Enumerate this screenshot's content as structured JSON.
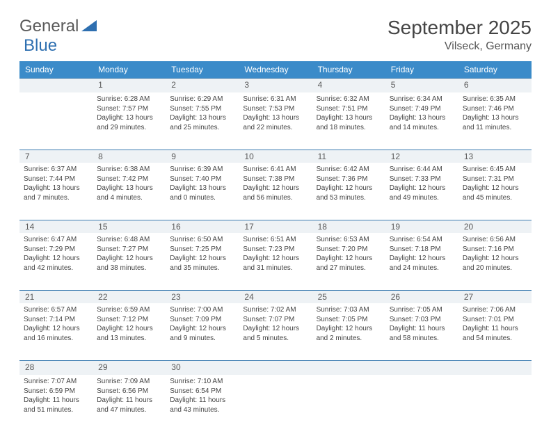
{
  "logo": {
    "part1": "General",
    "part2": "Blue"
  },
  "title": "September 2025",
  "location": "Vilseck, Germany",
  "colors": {
    "header_bg": "#3b8bc9",
    "header_text": "#ffffff",
    "daynum_bg": "#eef2f5",
    "daynum_border": "#3b7bb0",
    "text": "#444444",
    "logo_gray": "#5a5a5a",
    "logo_blue": "#2e6fb0",
    "page_bg": "#ffffff"
  },
  "day_names": [
    "Sunday",
    "Monday",
    "Tuesday",
    "Wednesday",
    "Thursday",
    "Friday",
    "Saturday"
  ],
  "weeks": [
    [
      {
        "day": "",
        "sunrise": "",
        "sunset": "",
        "daylight1": "",
        "daylight2": ""
      },
      {
        "day": "1",
        "sunrise": "Sunrise: 6:28 AM",
        "sunset": "Sunset: 7:57 PM",
        "daylight1": "Daylight: 13 hours",
        "daylight2": "and 29 minutes."
      },
      {
        "day": "2",
        "sunrise": "Sunrise: 6:29 AM",
        "sunset": "Sunset: 7:55 PM",
        "daylight1": "Daylight: 13 hours",
        "daylight2": "and 25 minutes."
      },
      {
        "day": "3",
        "sunrise": "Sunrise: 6:31 AM",
        "sunset": "Sunset: 7:53 PM",
        "daylight1": "Daylight: 13 hours",
        "daylight2": "and 22 minutes."
      },
      {
        "day": "4",
        "sunrise": "Sunrise: 6:32 AM",
        "sunset": "Sunset: 7:51 PM",
        "daylight1": "Daylight: 13 hours",
        "daylight2": "and 18 minutes."
      },
      {
        "day": "5",
        "sunrise": "Sunrise: 6:34 AM",
        "sunset": "Sunset: 7:49 PM",
        "daylight1": "Daylight: 13 hours",
        "daylight2": "and 14 minutes."
      },
      {
        "day": "6",
        "sunrise": "Sunrise: 6:35 AM",
        "sunset": "Sunset: 7:46 PM",
        "daylight1": "Daylight: 13 hours",
        "daylight2": "and 11 minutes."
      }
    ],
    [
      {
        "day": "7",
        "sunrise": "Sunrise: 6:37 AM",
        "sunset": "Sunset: 7:44 PM",
        "daylight1": "Daylight: 13 hours",
        "daylight2": "and 7 minutes."
      },
      {
        "day": "8",
        "sunrise": "Sunrise: 6:38 AM",
        "sunset": "Sunset: 7:42 PM",
        "daylight1": "Daylight: 13 hours",
        "daylight2": "and 4 minutes."
      },
      {
        "day": "9",
        "sunrise": "Sunrise: 6:39 AM",
        "sunset": "Sunset: 7:40 PM",
        "daylight1": "Daylight: 13 hours",
        "daylight2": "and 0 minutes."
      },
      {
        "day": "10",
        "sunrise": "Sunrise: 6:41 AM",
        "sunset": "Sunset: 7:38 PM",
        "daylight1": "Daylight: 12 hours",
        "daylight2": "and 56 minutes."
      },
      {
        "day": "11",
        "sunrise": "Sunrise: 6:42 AM",
        "sunset": "Sunset: 7:36 PM",
        "daylight1": "Daylight: 12 hours",
        "daylight2": "and 53 minutes."
      },
      {
        "day": "12",
        "sunrise": "Sunrise: 6:44 AM",
        "sunset": "Sunset: 7:33 PM",
        "daylight1": "Daylight: 12 hours",
        "daylight2": "and 49 minutes."
      },
      {
        "day": "13",
        "sunrise": "Sunrise: 6:45 AM",
        "sunset": "Sunset: 7:31 PM",
        "daylight1": "Daylight: 12 hours",
        "daylight2": "and 45 minutes."
      }
    ],
    [
      {
        "day": "14",
        "sunrise": "Sunrise: 6:47 AM",
        "sunset": "Sunset: 7:29 PM",
        "daylight1": "Daylight: 12 hours",
        "daylight2": "and 42 minutes."
      },
      {
        "day": "15",
        "sunrise": "Sunrise: 6:48 AM",
        "sunset": "Sunset: 7:27 PM",
        "daylight1": "Daylight: 12 hours",
        "daylight2": "and 38 minutes."
      },
      {
        "day": "16",
        "sunrise": "Sunrise: 6:50 AM",
        "sunset": "Sunset: 7:25 PM",
        "daylight1": "Daylight: 12 hours",
        "daylight2": "and 35 minutes."
      },
      {
        "day": "17",
        "sunrise": "Sunrise: 6:51 AM",
        "sunset": "Sunset: 7:23 PM",
        "daylight1": "Daylight: 12 hours",
        "daylight2": "and 31 minutes."
      },
      {
        "day": "18",
        "sunrise": "Sunrise: 6:53 AM",
        "sunset": "Sunset: 7:20 PM",
        "daylight1": "Daylight: 12 hours",
        "daylight2": "and 27 minutes."
      },
      {
        "day": "19",
        "sunrise": "Sunrise: 6:54 AM",
        "sunset": "Sunset: 7:18 PM",
        "daylight1": "Daylight: 12 hours",
        "daylight2": "and 24 minutes."
      },
      {
        "day": "20",
        "sunrise": "Sunrise: 6:56 AM",
        "sunset": "Sunset: 7:16 PM",
        "daylight1": "Daylight: 12 hours",
        "daylight2": "and 20 minutes."
      }
    ],
    [
      {
        "day": "21",
        "sunrise": "Sunrise: 6:57 AM",
        "sunset": "Sunset: 7:14 PM",
        "daylight1": "Daylight: 12 hours",
        "daylight2": "and 16 minutes."
      },
      {
        "day": "22",
        "sunrise": "Sunrise: 6:59 AM",
        "sunset": "Sunset: 7:12 PM",
        "daylight1": "Daylight: 12 hours",
        "daylight2": "and 13 minutes."
      },
      {
        "day": "23",
        "sunrise": "Sunrise: 7:00 AM",
        "sunset": "Sunset: 7:09 PM",
        "daylight1": "Daylight: 12 hours",
        "daylight2": "and 9 minutes."
      },
      {
        "day": "24",
        "sunrise": "Sunrise: 7:02 AM",
        "sunset": "Sunset: 7:07 PM",
        "daylight1": "Daylight: 12 hours",
        "daylight2": "and 5 minutes."
      },
      {
        "day": "25",
        "sunrise": "Sunrise: 7:03 AM",
        "sunset": "Sunset: 7:05 PM",
        "daylight1": "Daylight: 12 hours",
        "daylight2": "and 2 minutes."
      },
      {
        "day": "26",
        "sunrise": "Sunrise: 7:05 AM",
        "sunset": "Sunset: 7:03 PM",
        "daylight1": "Daylight: 11 hours",
        "daylight2": "and 58 minutes."
      },
      {
        "day": "27",
        "sunrise": "Sunrise: 7:06 AM",
        "sunset": "Sunset: 7:01 PM",
        "daylight1": "Daylight: 11 hours",
        "daylight2": "and 54 minutes."
      }
    ],
    [
      {
        "day": "28",
        "sunrise": "Sunrise: 7:07 AM",
        "sunset": "Sunset: 6:59 PM",
        "daylight1": "Daylight: 11 hours",
        "daylight2": "and 51 minutes."
      },
      {
        "day": "29",
        "sunrise": "Sunrise: 7:09 AM",
        "sunset": "Sunset: 6:56 PM",
        "daylight1": "Daylight: 11 hours",
        "daylight2": "and 47 minutes."
      },
      {
        "day": "30",
        "sunrise": "Sunrise: 7:10 AM",
        "sunset": "Sunset: 6:54 PM",
        "daylight1": "Daylight: 11 hours",
        "daylight2": "and 43 minutes."
      },
      {
        "day": "",
        "sunrise": "",
        "sunset": "",
        "daylight1": "",
        "daylight2": ""
      },
      {
        "day": "",
        "sunrise": "",
        "sunset": "",
        "daylight1": "",
        "daylight2": ""
      },
      {
        "day": "",
        "sunrise": "",
        "sunset": "",
        "daylight1": "",
        "daylight2": ""
      },
      {
        "day": "",
        "sunrise": "",
        "sunset": "",
        "daylight1": "",
        "daylight2": ""
      }
    ]
  ]
}
